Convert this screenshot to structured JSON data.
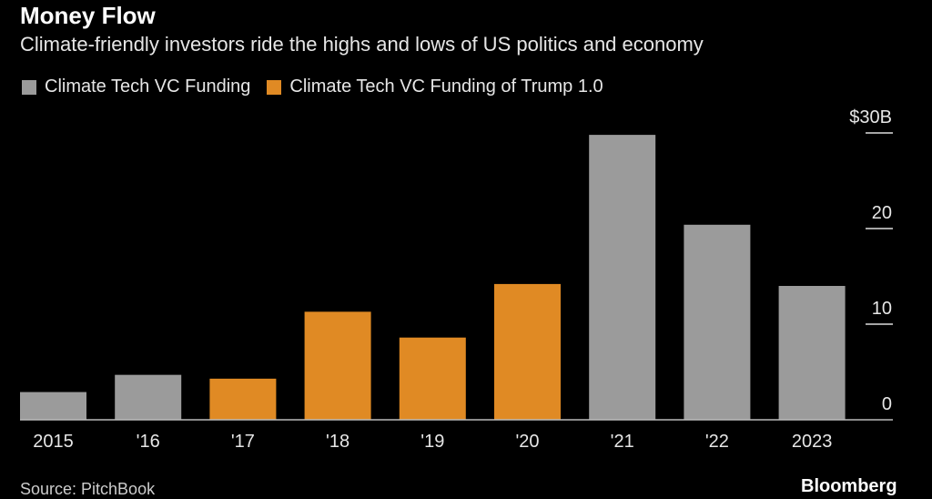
{
  "chart_data": {
    "type": "bar",
    "title": "Money Flow",
    "subtitle": "Climate-friendly investors ride the highs and lows of US politics and economy",
    "categories": [
      "2015",
      "'16",
      "'17",
      "'18",
      "'19",
      "'20",
      "'21",
      "'22",
      "2023"
    ],
    "values": [
      2.9,
      4.7,
      4.3,
      11.3,
      8.6,
      14.2,
      29.8,
      20.4,
      14.0
    ],
    "series_assignment": [
      "Climate Tech VC Funding",
      "Climate Tech VC Funding",
      "Climate Tech VC Funding of Trump 1.0",
      "Climate Tech VC Funding of Trump 1.0",
      "Climate Tech VC Funding of Trump 1.0",
      "Climate Tech VC Funding of Trump 1.0",
      "Climate Tech VC Funding",
      "Climate Tech VC Funding",
      "Climate Tech VC Funding"
    ],
    "legend": [
      {
        "name": "Climate Tech VC Funding",
        "color": "#9b9b9b"
      },
      {
        "name": "Climate Tech VC Funding of Trump 1.0",
        "color": "#e08a24"
      }
    ],
    "legend_position": "top-left",
    "yticks": [
      {
        "value": 0,
        "label": "0"
      },
      {
        "value": 10,
        "label": "10"
      },
      {
        "value": 20,
        "label": "20"
      },
      {
        "value": 30,
        "label": "$30B"
      }
    ],
    "ylim": [
      0,
      30
    ],
    "xlabel": "",
    "ylabel": "",
    "y_axis_side": "right",
    "grid": false
  },
  "footer": {
    "source": "Source: PitchBook",
    "brand": "Bloomberg"
  }
}
